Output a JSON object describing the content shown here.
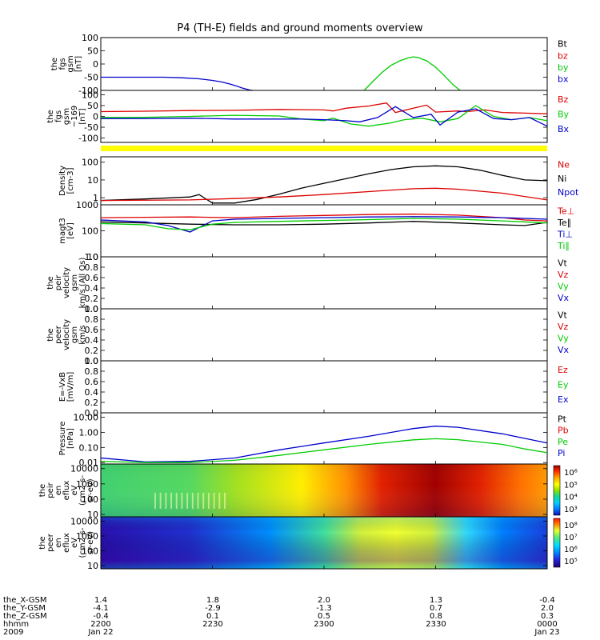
{
  "title": "P4 (TH-E) fields and ground moments overview",
  "colors": {
    "black": "#000000",
    "red": "#dd0000",
    "green": "#00cc00",
    "blue": "#0000cc",
    "yellow_bar": "#ffff00"
  },
  "chart_data": [
    {
      "id": "fgs",
      "type": "line",
      "ylabel_lines": [
        "the",
        "fgs",
        "gsm",
        "[nT]"
      ],
      "ylim": [
        -100,
        100
      ],
      "yticks": [
        "100",
        "50",
        "0",
        "-50",
        "-100"
      ],
      "legend": [
        {
          "text": "Bt",
          "color": "black"
        },
        {
          "text": "bz",
          "color": "red"
        },
        {
          "text": "by",
          "color": "green"
        },
        {
          "text": "bx",
          "color": "blue"
        }
      ],
      "series": [
        {
          "name": "bx",
          "color": "blue",
          "x": [
            0,
            0.08,
            0.14,
            0.18,
            0.22,
            0.25,
            0.27,
            0.29,
            0.305,
            0.315,
            0.325,
            0.335,
            0.34
          ],
          "y": [
            -50,
            -50,
            -50,
            -52,
            -56,
            -62,
            -68,
            -76,
            -84,
            -90,
            -95,
            -99,
            -100
          ]
        },
        {
          "name": "by",
          "color": "green",
          "x": [
            0.59,
            0.61,
            0.63,
            0.65,
            0.67,
            0.69,
            0.7,
            0.71,
            0.73,
            0.75,
            0.77,
            0.79,
            0.805
          ],
          "y": [
            -100,
            -65,
            -32,
            -5,
            12,
            24,
            27,
            25,
            12,
            -12,
            -45,
            -80,
            -100
          ]
        }
      ]
    },
    {
      "id": "fgl",
      "type": "line",
      "ylabel_lines": [
        "the",
        "fgs",
        "gsm",
        "~169",
        "[nT]"
      ],
      "ylim": [
        -120,
        120
      ],
      "yticks": [
        "100",
        "50",
        "0",
        "-50",
        "-100"
      ],
      "legend": [
        {
          "text": "Bz",
          "color": "red"
        },
        {
          "text": "By",
          "color": "green"
        },
        {
          "text": "Bx",
          "color": "blue"
        }
      ],
      "series": [
        {
          "name": "Bz",
          "color": "red",
          "x": [
            0,
            0.1,
            0.2,
            0.3,
            0.4,
            0.5,
            0.52,
            0.55,
            0.6,
            0.64,
            0.66,
            0.7,
            0.73,
            0.75,
            0.8,
            0.82,
            0.86,
            0.9,
            0.95,
            1.0
          ],
          "y": [
            22,
            24,
            27,
            28,
            32,
            30,
            25,
            38,
            48,
            62,
            18,
            38,
            52,
            20,
            25,
            22,
            30,
            18,
            15,
            12
          ]
        },
        {
          "name": "By",
          "color": "green",
          "x": [
            0,
            0.1,
            0.2,
            0.3,
            0.4,
            0.45,
            0.5,
            0.52,
            0.56,
            0.6,
            0.65,
            0.68,
            0.72,
            0.76,
            0.8,
            0.84,
            0.88,
            0.92,
            0.96,
            1.0
          ],
          "y": [
            -5,
            -4,
            0,
            5,
            2,
            -12,
            -20,
            -8,
            -35,
            -45,
            -30,
            -15,
            -8,
            -25,
            -10,
            50,
            0,
            -15,
            -5,
            -20
          ]
        },
        {
          "name": "Bx",
          "color": "blue",
          "x": [
            0,
            0.1,
            0.2,
            0.3,
            0.4,
            0.45,
            0.5,
            0.55,
            0.58,
            0.62,
            0.66,
            0.7,
            0.74,
            0.76,
            0.8,
            0.84,
            0.88,
            0.92,
            0.96,
            1.0
          ],
          "y": [
            -10,
            -10,
            -8,
            -12,
            -12,
            -12,
            -15,
            -20,
            -25,
            -5,
            45,
            -5,
            10,
            -40,
            20,
            35,
            -10,
            -15,
            -5,
            -45
          ]
        }
      ]
    },
    {
      "id": "density",
      "type": "line",
      "ylabel_lines": [
        "Density",
        "[cm-3]"
      ],
      "yscale": "log",
      "ylim": [
        0.4,
        200
      ],
      "yticks": [
        "100",
        "10",
        "1"
      ],
      "legend": [
        {
          "text": "Ne",
          "color": "red"
        },
        {
          "text": "Ni",
          "color": "black"
        },
        {
          "text": "Npot",
          "color": "blue"
        }
      ],
      "series": [
        {
          "name": "Ni",
          "color": "black",
          "x": [
            0,
            0.1,
            0.2,
            0.22,
            0.25,
            0.3,
            0.35,
            0.4,
            0.45,
            0.5,
            0.55,
            0.6,
            0.65,
            0.7,
            0.75,
            0.8,
            0.85,
            0.9,
            0.95,
            1.0
          ],
          "y": [
            0.7,
            0.85,
            1.1,
            1.5,
            0.5,
            0.5,
            0.8,
            1.6,
            3.5,
            6.5,
            12,
            22,
            38,
            55,
            62,
            55,
            35,
            18,
            10,
            9
          ]
        },
        {
          "name": "Ne",
          "color": "red",
          "x": [
            0,
            0.2,
            0.3,
            0.4,
            0.5,
            0.6,
            0.7,
            0.75,
            0.8,
            0.9,
            1.0
          ],
          "y": [
            0.7,
            0.75,
            0.9,
            1.1,
            1.5,
            2.2,
            3.2,
            3.4,
            3.0,
            1.8,
            0.75
          ]
        }
      ]
    },
    {
      "id": "temperature",
      "type": "line",
      "ylabel_lines": [
        "magt3",
        "[eV]"
      ],
      "yscale": "log",
      "ylim": [
        10,
        1000
      ],
      "yticks": [
        "1000",
        "100",
        "10"
      ],
      "legend": [
        {
          "text": "Te⊥",
          "color": "red"
        },
        {
          "text": "Te∥",
          "color": "black"
        },
        {
          "text": "Ti⊥",
          "color": "blue"
        },
        {
          "text": "Ti∥",
          "color": "green"
        }
      ],
      "series": [
        {
          "name": "Te⊥",
          "color": "red",
          "x": [
            0,
            0.1,
            0.2,
            0.3,
            0.4,
            0.5,
            0.6,
            0.7,
            0.8,
            0.9,
            0.95,
            1.0
          ],
          "y": [
            320,
            330,
            340,
            320,
            360,
            390,
            420,
            440,
            400,
            320,
            260,
            240
          ]
        },
        {
          "name": "Te∥",
          "color": "black",
          "x": [
            0,
            0.1,
            0.2,
            0.3,
            0.4,
            0.5,
            0.6,
            0.7,
            0.8,
            0.9,
            0.95,
            1.0
          ],
          "y": [
            220,
            200,
            180,
            170,
            170,
            180,
            200,
            230,
            200,
            170,
            160,
            210
          ]
        },
        {
          "name": "Ti⊥",
          "color": "blue",
          "x": [
            0,
            0.1,
            0.15,
            0.2,
            0.25,
            0.3,
            0.4,
            0.5,
            0.6,
            0.7,
            0.8,
            0.9,
            1.0
          ],
          "y": [
            260,
            220,
            160,
            90,
            240,
            280,
            300,
            320,
            340,
            350,
            340,
            320,
            280
          ]
        },
        {
          "name": "Ti∥",
          "color": "green",
          "x": [
            0,
            0.1,
            0.15,
            0.2,
            0.25,
            0.3,
            0.4,
            0.5,
            0.6,
            0.7,
            0.8,
            0.9,
            1.0
          ],
          "y": [
            190,
            170,
            120,
            110,
            180,
            210,
            230,
            250,
            270,
            300,
            280,
            240,
            200
          ]
        }
      ]
    },
    {
      "id": "ion_velocity",
      "type": "line",
      "ylabel_lines": [
        "the",
        "peir",
        "velocity",
        "gsm",
        "km/s (All Qs)"
      ],
      "ylim": [
        0,
        1
      ],
      "yticks": [
        "1.0",
        "0.8",
        "0.6",
        "0.4",
        "0.2",
        "0.0"
      ],
      "legend": [
        {
          "text": "Vt",
          "color": "black"
        },
        {
          "text": "Vz",
          "color": "red"
        },
        {
          "text": "Vy",
          "color": "green"
        },
        {
          "text": "Vx",
          "color": "blue"
        }
      ],
      "series": []
    },
    {
      "id": "electron_velocity",
      "type": "line",
      "ylabel_lines": [
        "the",
        "peer",
        "velocity",
        "gsm",
        "km/s"
      ],
      "ylim": [
        0,
        1
      ],
      "yticks": [
        "1.0",
        "0.8",
        "0.6",
        "0.4",
        "0.2",
        "0.0"
      ],
      "legend": [
        {
          "text": "Vt",
          "color": "black"
        },
        {
          "text": "Vz",
          "color": "red"
        },
        {
          "text": "Vy",
          "color": "green"
        },
        {
          "text": "Vx",
          "color": "blue"
        }
      ],
      "series": []
    },
    {
      "id": "efield",
      "type": "line",
      "ylabel_lines": [
        "E=-VxB",
        "[mV/m]"
      ],
      "ylim": [
        0,
        1
      ],
      "yticks": [
        "1.0",
        "0.8",
        "0.6",
        "0.4",
        "0.2",
        "0.0"
      ],
      "legend": [
        {
          "text": "Ez",
          "color": "red"
        },
        {
          "text": "Ey",
          "color": "green"
        },
        {
          "text": "Ex",
          "color": "blue"
        }
      ],
      "series": []
    },
    {
      "id": "pressure",
      "type": "line",
      "ylabel_lines": [
        "Pressure",
        "[nPa]"
      ],
      "yscale": "log",
      "ylim": [
        0.008,
        20
      ],
      "yticks": [
        "10.00",
        "1.00",
        "0.10",
        "0.01"
      ],
      "legend": [
        {
          "text": "Pt",
          "color": "black"
        },
        {
          "text": "Pb",
          "color": "red"
        },
        {
          "text": "Pe",
          "color": "green"
        },
        {
          "text": "Pi",
          "color": "blue"
        }
      ],
      "series": [
        {
          "name": "Pi",
          "color": "blue",
          "x": [
            0,
            0.1,
            0.2,
            0.3,
            0.4,
            0.5,
            0.6,
            0.7,
            0.75,
            0.8,
            0.9,
            0.95,
            1.0
          ],
          "y": [
            0.02,
            0.011,
            0.012,
            0.02,
            0.07,
            0.2,
            0.55,
            1.8,
            2.6,
            2.2,
            0.8,
            0.4,
            0.2
          ]
        },
        {
          "name": "Pe",
          "color": "green",
          "x": [
            0,
            0.1,
            0.2,
            0.3,
            0.4,
            0.5,
            0.6,
            0.7,
            0.75,
            0.8,
            0.9,
            0.95,
            1.0
          ],
          "y": [
            0.012,
            0.01,
            0.01,
            0.014,
            0.03,
            0.07,
            0.16,
            0.32,
            0.38,
            0.33,
            0.16,
            0.08,
            0.045
          ]
        }
      ]
    },
    {
      "id": "ion_spectrogram",
      "type": "heatmap",
      "ylabel_lines": [
        "the",
        "peir",
        "en",
        "eflux",
        "eV",
        "(cm2-s-",
        "sr-eV)"
      ],
      "yscale": "log",
      "ylim": [
        7,
        20000
      ],
      "yticks": [
        "10000",
        "1000",
        "100",
        "10"
      ],
      "colorbar_ticks": [
        "10⁶",
        "10⁵",
        "10⁴",
        "10³"
      ]
    },
    {
      "id": "electron_spectrogram",
      "type": "heatmap",
      "ylabel_lines": [
        "the",
        "peer",
        "en",
        "eflux",
        "eV",
        "(cm2-s-",
        "sr-eV)"
      ],
      "yscale": "log",
      "ylim": [
        6,
        20000
      ],
      "yticks": [
        "10000",
        "1000",
        "100",
        "10"
      ],
      "colorbar_ticks": [
        "10⁸",
        "10⁷",
        "10⁶",
        "10⁵"
      ]
    }
  ],
  "ephemeris": {
    "labels": [
      "the_X-GSM",
      "the_Y-GSM",
      "the_Z-GSM",
      "hhmm",
      "2009"
    ],
    "columns": [
      [
        "1.4",
        "-4.1",
        "-0.4",
        "2200",
        "Jan 22"
      ],
      [
        "1.8",
        "-2.9",
        "0.1",
        "2230",
        ""
      ],
      [
        "2.0",
        "-1.3",
        "0.5",
        "2300",
        ""
      ],
      [
        "1.3",
        "0.7",
        "0.8",
        "2330",
        ""
      ],
      [
        "-0.4",
        "2.0",
        "0.3",
        "0000",
        "Jan 23"
      ]
    ]
  }
}
